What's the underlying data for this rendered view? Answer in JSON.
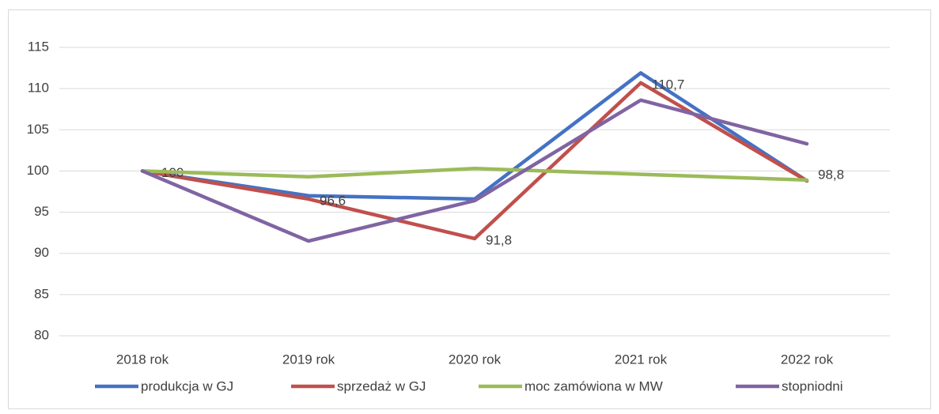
{
  "chart_data": {
    "type": "line",
    "categories": [
      "2018 rok",
      "2019 rok",
      "2020 rok",
      "2021 rok",
      "2022 rok"
    ],
    "series": [
      {
        "name": "produkcja w GJ",
        "color": "#4472c4",
        "values": [
          100,
          97,
          96.6,
          111.9,
          98.8
        ]
      },
      {
        "name": "sprzedaż w GJ",
        "color": "#c0504d",
        "values": [
          100,
          96.6,
          91.8,
          110.7,
          98.8
        ],
        "value_labels": [
          "100",
          "96,6",
          "91,8",
          "110,7",
          "98,8"
        ]
      },
      {
        "name": "moc zamówiona w MW",
        "color": "#9bbb59",
        "values": [
          100,
          99.3,
          100.3,
          99.6,
          98.9
        ]
      },
      {
        "name": "stopniodni",
        "color": "#8064a2",
        "values": [
          100,
          91.5,
          96.4,
          108.6,
          103.3
        ]
      }
    ],
    "ylim": [
      80,
      115
    ],
    "yticks": [
      80,
      85,
      90,
      95,
      100,
      105,
      110,
      115
    ],
    "grid": true,
    "legend": "bottom"
  }
}
